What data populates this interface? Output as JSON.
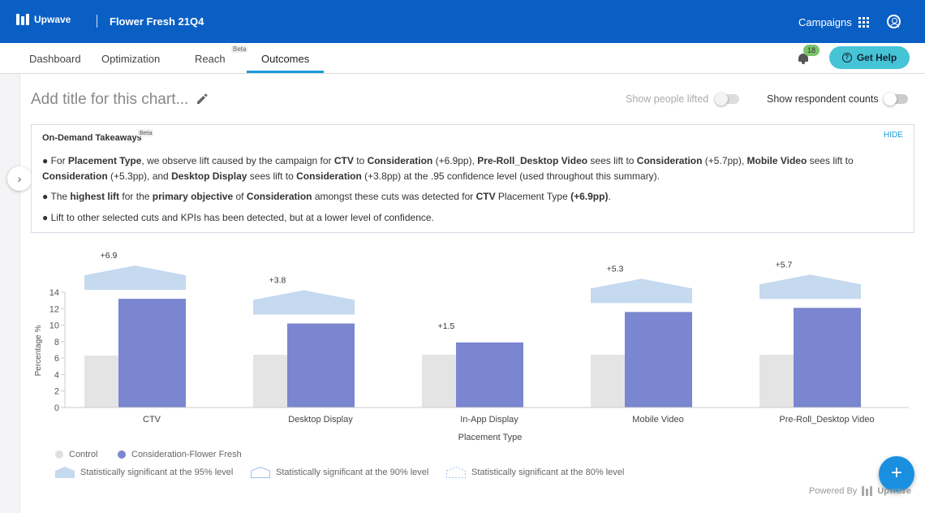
{
  "header": {
    "logo_text": "Upwave",
    "project_title": "Flower Fresh 21Q4",
    "campaigns_label": "Campaigns",
    "grid_icon": "apps-grid-icon",
    "user_icon": "account-circle-icon"
  },
  "nav": {
    "tabs": [
      {
        "label": "Dashboard"
      },
      {
        "label": "Optimization"
      },
      {
        "label": "Reach",
        "badge": "Beta"
      },
      {
        "label": "Outcomes"
      }
    ],
    "active_tab": "Outcomes",
    "notification_count": "18",
    "help_label": "Get Help"
  },
  "toolbar": {
    "chart_title_placeholder": "Add title for this chart...",
    "show_people_lifted": "Show people lifted",
    "show_respondent_counts": "Show respondent counts"
  },
  "takeaways": {
    "title": "On-Demand Takeaways",
    "badge": "Beta",
    "hide_label": "HIDE"
  },
  "chart_data": {
    "type": "bar",
    "xlabel": "Placement Type",
    "ylabel": "Percentage %",
    "ylim": [
      0,
      14
    ],
    "yticks": [
      0,
      2,
      4,
      6,
      8,
      10,
      12,
      14
    ],
    "categories": [
      "CTV",
      "Desktop Display",
      "In-App Display",
      "Mobile Video",
      "Pre-Roll_Desktop Video"
    ],
    "series": [
      {
        "name": "Control",
        "values": [
          6.3,
          6.4,
          6.4,
          6.4,
          6.4
        ],
        "color": "#e4e4e4"
      },
      {
        "name": "Consideration-Flower Fresh",
        "values": [
          13.2,
          10.2,
          7.9,
          11.6,
          12.1
        ],
        "color": "#7a86cf"
      }
    ],
    "lift_labels": [
      "+6.9",
      "+3.8",
      "+1.5",
      "+5.3",
      "+5.7"
    ],
    "significance": [
      "95",
      "95",
      "none",
      "95",
      "95"
    ],
    "sig_color": "#c5d9ef",
    "grid": false,
    "legend_position": "bottom-left"
  },
  "legend": {
    "series": [
      "Control",
      "Consideration-Flower Fresh"
    ],
    "sig_95": "Statistically significant at the 95% level",
    "sig_90": "Statistically significant at the 90% level",
    "sig_80": "Statistically significant at the 80% level"
  },
  "footer": {
    "powered_by": "Powered By",
    "brand": "Upwave"
  }
}
